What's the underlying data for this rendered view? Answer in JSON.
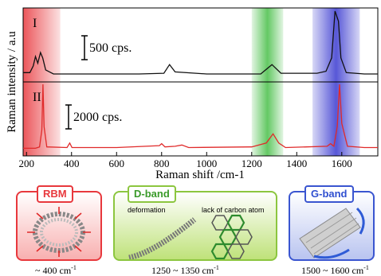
{
  "chart_data": {
    "type": "line",
    "xlabel": "Raman shift /cm-1",
    "ylabel": "Raman intensity / a.u",
    "xlim": [
      185,
      1760
    ],
    "xticks": [
      200,
      400,
      600,
      800,
      1000,
      1200,
      1400,
      1600
    ],
    "highlight_bands": [
      {
        "name": "RBM",
        "range": [
          185,
          350
        ],
        "color": "#e8383d"
      },
      {
        "name": "D-band",
        "range": [
          1200,
          1340
        ],
        "color": "#3dbb3d"
      },
      {
        "name": "G-band",
        "range": [
          1470,
          1680
        ],
        "color": "#3a3ad0"
      }
    ],
    "series": [
      {
        "name": "I",
        "color": "#111111",
        "scale_bar": "500 cps.",
        "points": [
          [
            185,
            0.08
          ],
          [
            215,
            0.08
          ],
          [
            230,
            0.18
          ],
          [
            240,
            0.32
          ],
          [
            250,
            0.22
          ],
          [
            262,
            0.38
          ],
          [
            272,
            0.3
          ],
          [
            285,
            0.12
          ],
          [
            320,
            0.06
          ],
          [
            420,
            0.06
          ],
          [
            700,
            0.06
          ],
          [
            810,
            0.07
          ],
          [
            835,
            0.2
          ],
          [
            860,
            0.09
          ],
          [
            1000,
            0.06
          ],
          [
            1240,
            0.06
          ],
          [
            1290,
            0.2
          ],
          [
            1330,
            0.07
          ],
          [
            1490,
            0.07
          ],
          [
            1530,
            0.1
          ],
          [
            1555,
            0.3
          ],
          [
            1570,
            1.0
          ],
          [
            1585,
            0.85
          ],
          [
            1596,
            0.3
          ],
          [
            1620,
            0.08
          ],
          [
            1700,
            0.06
          ],
          [
            1760,
            0.06
          ]
        ]
      },
      {
        "name": "II",
        "color": "#e02a2a",
        "scale_bar": "2000 cps.",
        "points": [
          [
            185,
            0.02
          ],
          [
            240,
            0.02
          ],
          [
            258,
            0.04
          ],
          [
            268,
            0.3
          ],
          [
            273,
            1.0
          ],
          [
            278,
            0.35
          ],
          [
            290,
            0.04
          ],
          [
            380,
            0.03
          ],
          [
            392,
            0.1
          ],
          [
            402,
            0.03
          ],
          [
            600,
            0.03
          ],
          [
            790,
            0.06
          ],
          [
            800,
            0.09
          ],
          [
            815,
            0.04
          ],
          [
            860,
            0.05
          ],
          [
            890,
            0.07
          ],
          [
            920,
            0.03
          ],
          [
            1200,
            0.04
          ],
          [
            1265,
            0.1
          ],
          [
            1295,
            0.24
          ],
          [
            1320,
            0.1
          ],
          [
            1350,
            0.03
          ],
          [
            1535,
            0.05
          ],
          [
            1550,
            0.09
          ],
          [
            1565,
            0.05
          ],
          [
            1580,
            0.35
          ],
          [
            1590,
            1.0
          ],
          [
            1600,
            0.4
          ],
          [
            1625,
            0.05
          ],
          [
            1700,
            0.03
          ],
          [
            1760,
            0.03
          ]
        ]
      }
    ]
  },
  "panels": [
    {
      "label": "RBM",
      "range": "~ 400 cm",
      "range_sup": "-1"
    },
    {
      "label": "D-band",
      "range": "1250 ~ 1350 cm",
      "range_sup": "-1",
      "note_left": "deformation",
      "note_right": "lack of carbon atom"
    },
    {
      "label": "G-band",
      "range": "1500 ~ 1600 cm",
      "range_sup": "-1"
    }
  ],
  "colors": {
    "rbm": "#e8383d",
    "dband": "#8cc63f",
    "gband": "#3a55d0"
  }
}
